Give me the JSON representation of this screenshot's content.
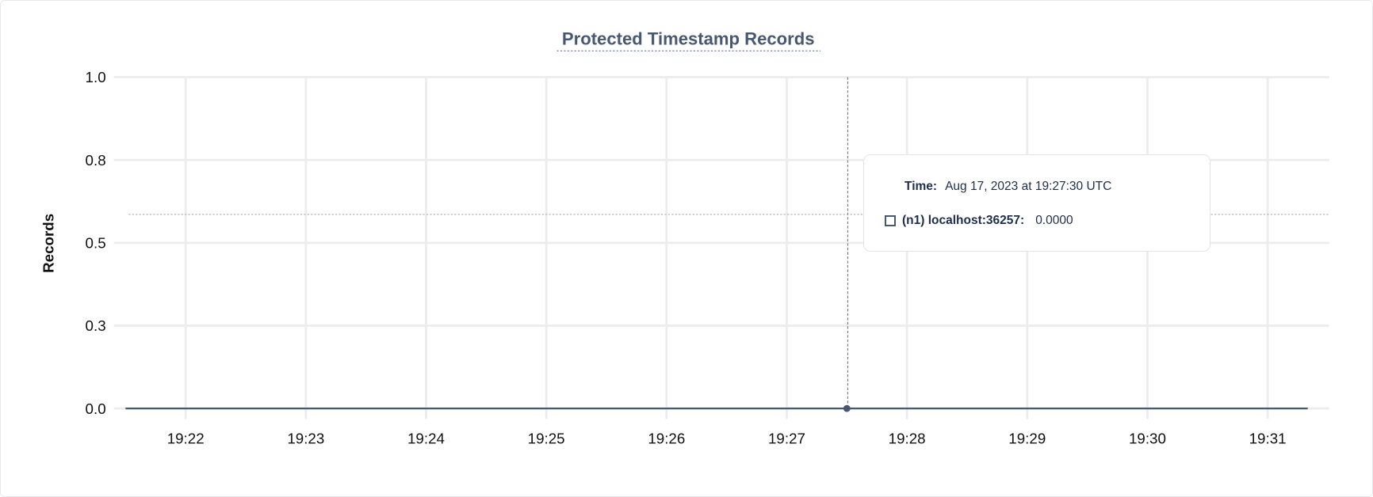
{
  "chart_data": {
    "type": "line",
    "title": "Protected Timestamp Records",
    "xlabel": "",
    "ylabel": "Records",
    "ylim": [
      0,
      1
    ],
    "yticks": [
      {
        "value": 0,
        "label": "0.0"
      },
      {
        "value": 0.25,
        "label": "0.3"
      },
      {
        "value": 0.5,
        "label": "0.5"
      },
      {
        "value": 0.75,
        "label": "0.8"
      },
      {
        "value": 1,
        "label": "1.0"
      }
    ],
    "xticks": [
      "19:22",
      "19:23",
      "19:24",
      "19:25",
      "19:26",
      "19:27",
      "19:28",
      "19:29",
      "19:30",
      "19:31"
    ],
    "xlim": [
      "19:21:30",
      "19:31:20"
    ],
    "grid": true,
    "series": [
      {
        "name": "(n1) localhost:36257",
        "color": "#475872",
        "x": [
          "19:21:30",
          "19:22:00",
          "19:22:30",
          "19:23:00",
          "19:23:30",
          "19:24:00",
          "19:24:30",
          "19:25:00",
          "19:25:30",
          "19:26:00",
          "19:26:30",
          "19:27:00",
          "19:27:30",
          "19:28:00",
          "19:28:30",
          "19:29:00",
          "19:29:30",
          "19:30:00",
          "19:30:30",
          "19:31:00",
          "19:31:20"
        ],
        "values": [
          0,
          0,
          0,
          0,
          0,
          0,
          0,
          0,
          0,
          0,
          0,
          0,
          0,
          0,
          0,
          0,
          0,
          0,
          0,
          0,
          0
        ]
      }
    ],
    "hover": {
      "x": "19:27:30",
      "value": 0
    }
  },
  "tooltip": {
    "time_label": "Time:",
    "time_value": "Aug 17, 2023 at 19:27:30 UTC",
    "series_label": "(n1) localhost:36257:",
    "series_value": "0.0000"
  }
}
